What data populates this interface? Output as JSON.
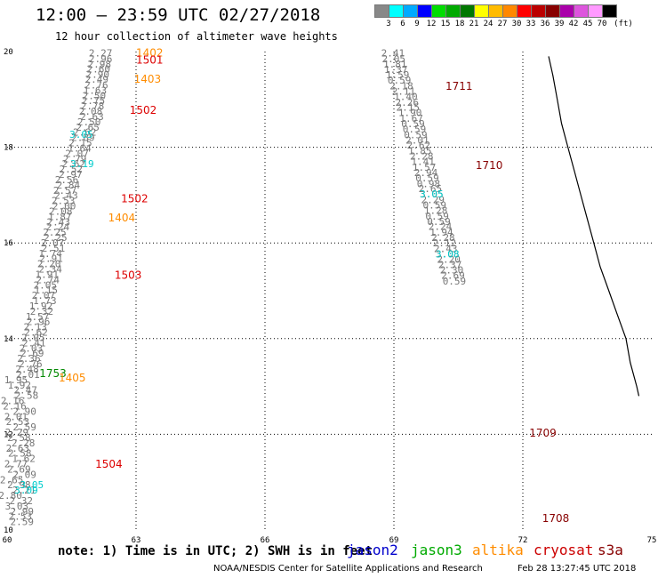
{
  "title": "12:00 – 23:59 UTC 02/27/2018",
  "subtitle": "12 hour collection of altimeter wave heights",
  "colorbar": {
    "colors": [
      "#888888",
      "#00ffff",
      "#00aaff",
      "#0000ff",
      "#00dd00",
      "#00aa00",
      "#007700",
      "#ffff00",
      "#ffbb00",
      "#ff8800",
      "#ff0000",
      "#bb0000",
      "#880000",
      "#aa00aa",
      "#dd55dd",
      "#ff99ff",
      "#000000"
    ],
    "labels": [
      "3",
      "6",
      "9",
      "12",
      "15",
      "18",
      "21",
      "24",
      "27",
      "30",
      "33",
      "36",
      "39",
      "42",
      "45",
      "70",
      "(ft)"
    ]
  },
  "map": {
    "lon_min": 60,
    "lon_max": 75,
    "lat_min": 10,
    "lat_max": 20,
    "lon_ticks": [
      60,
      63,
      66,
      69,
      72,
      75
    ],
    "lat_ticks": [
      10,
      12,
      14,
      16,
      18,
      20
    ],
    "grid": "dotted"
  },
  "coastline": [
    [
      72.6,
      19.9
    ],
    [
      72.7,
      19.5
    ],
    [
      72.8,
      19.0
    ],
    [
      72.9,
      18.5
    ],
    [
      73.05,
      18.0
    ],
    [
      73.2,
      17.5
    ],
    [
      73.35,
      17.0
    ],
    [
      73.5,
      16.5
    ],
    [
      73.65,
      16.0
    ],
    [
      73.8,
      15.5
    ],
    [
      74.0,
      15.0
    ],
    [
      74.2,
      14.5
    ],
    [
      74.4,
      14.0
    ],
    [
      74.5,
      13.5
    ],
    [
      74.65,
      13.0
    ],
    [
      74.7,
      12.8
    ]
  ],
  "coast_color": "#000000",
  "passes": [
    {
      "color": "#777777",
      "labels": [
        [
          62.45,
          19.9,
          "2.27"
        ],
        [
          62.45,
          19.78,
          "2.96"
        ],
        [
          62.42,
          19.67,
          "2.98"
        ],
        [
          62.4,
          19.56,
          "2.60"
        ],
        [
          62.38,
          19.45,
          "2.90"
        ],
        [
          62.36,
          19.35,
          "2.49"
        ],
        [
          62.35,
          19.23,
          "2.76"
        ],
        [
          62.32,
          19.12,
          "1.63"
        ],
        [
          62.3,
          19.01,
          "2.50"
        ],
        [
          62.28,
          18.9,
          "2.75"
        ],
        [
          62.26,
          18.79,
          "2.78"
        ],
        [
          62.22,
          18.68,
          "2.08"
        ],
        [
          62.25,
          18.57,
          "2.63"
        ],
        [
          62.18,
          18.46,
          "2.50"
        ],
        [
          62.15,
          18.35,
          "2.65"
        ],
        [
          62.08,
          18.24,
          "2.62"
        ],
        [
          62.04,
          18.13,
          "2.89"
        ],
        [
          61.98,
          18.02,
          "2.15"
        ],
        [
          61.96,
          17.91,
          "1.64"
        ],
        [
          61.9,
          17.8,
          "2.07"
        ],
        [
          61.85,
          17.69,
          "2.79"
        ],
        [
          61.82,
          17.58,
          "2.62"
        ],
        [
          61.76,
          17.47,
          "2.52"
        ],
        [
          61.75,
          17.36,
          "2.97"
        ],
        [
          61.66,
          17.25,
          "2.56"
        ],
        [
          61.7,
          17.14,
          "2.84"
        ],
        [
          61.62,
          17.03,
          "2.57"
        ],
        [
          61.65,
          16.92,
          "2.43"
        ],
        [
          61.58,
          16.81,
          "2.53"
        ],
        [
          61.6,
          16.7,
          "2.00"
        ],
        [
          61.52,
          16.59,
          "2.08"
        ],
        [
          61.5,
          16.48,
          "1.87"
        ],
        [
          61.47,
          16.37,
          "2.43"
        ],
        [
          61.45,
          16.26,
          "2.24"
        ],
        [
          61.38,
          16.15,
          "2.25"
        ],
        [
          61.4,
          16.04,
          "2.25"
        ],
        [
          61.33,
          15.93,
          "2.07"
        ],
        [
          61.35,
          15.82,
          "2.51"
        ],
        [
          61.28,
          15.71,
          "1.74"
        ],
        [
          61.3,
          15.6,
          "2.91"
        ],
        [
          61.25,
          15.49,
          "2.20"
        ],
        [
          61.28,
          15.38,
          "2.34"
        ],
        [
          61.2,
          15.27,
          "1.91"
        ],
        [
          61.22,
          15.16,
          "2.74"
        ],
        [
          61.16,
          15.05,
          "2.05"
        ],
        [
          61.18,
          14.94,
          "1.15"
        ],
        [
          61.12,
          14.83,
          "2.07"
        ],
        [
          61.15,
          14.72,
          "1.73"
        ],
        [
          61.06,
          14.61,
          "1.92"
        ],
        [
          61.08,
          14.5,
          "2.32"
        ],
        [
          60.98,
          14.39,
          "1.57"
        ],
        [
          61.0,
          14.28,
          "2.96"
        ],
        [
          60.93,
          14.17,
          "2.13"
        ],
        [
          60.95,
          14.06,
          "2.62"
        ],
        [
          60.88,
          13.95,
          "2.05"
        ],
        [
          60.9,
          13.84,
          "2.41"
        ],
        [
          60.83,
          13.73,
          "2.03"
        ],
        [
          60.86,
          13.62,
          "2.69"
        ],
        [
          60.78,
          13.51,
          "2.36"
        ],
        [
          60.82,
          13.4,
          "2.76"
        ],
        [
          60.74,
          13.29,
          "2.48"
        ],
        [
          60.76,
          13.18,
          "2.01"
        ],
        [
          60.48,
          13.07,
          "1.95"
        ],
        [
          60.56,
          12.96,
          "1.92"
        ],
        [
          60.7,
          12.85,
          "2.47"
        ],
        [
          60.73,
          12.74,
          "2.58"
        ],
        [
          60.4,
          12.63,
          "2.16"
        ],
        [
          60.45,
          12.52,
          "2.16"
        ],
        [
          60.68,
          12.41,
          "2.90"
        ],
        [
          60.48,
          12.3,
          "2.01"
        ],
        [
          60.52,
          12.19,
          "2.53"
        ],
        [
          60.68,
          12.08,
          "2.59"
        ],
        [
          60.5,
          11.97,
          "2.29"
        ],
        [
          60.55,
          11.86,
          "2.58"
        ],
        [
          60.65,
          11.75,
          "2.28"
        ],
        [
          60.52,
          11.64,
          "2.63"
        ],
        [
          60.57,
          11.53,
          "2.58"
        ],
        [
          60.66,
          11.42,
          "1.62"
        ],
        [
          60.48,
          11.31,
          "2.77"
        ],
        [
          60.55,
          11.2,
          "2.69"
        ],
        [
          60.68,
          11.09,
          "2.09"
        ],
        [
          60.38,
          10.98,
          "2.65"
        ],
        [
          60.55,
          10.87,
          "2.98"
        ],
        [
          60.67,
          10.76,
          "2.21"
        ],
        [
          60.35,
          10.65,
          "2.80"
        ],
        [
          60.6,
          10.54,
          "2.32"
        ],
        [
          60.5,
          10.43,
          "3.03"
        ],
        [
          60.62,
          10.32,
          "2.99"
        ],
        [
          60.58,
          10.21,
          "2.53"
        ],
        [
          60.62,
          10.1,
          "2.59"
        ]
      ]
    },
    {
      "color": "#777777",
      "labels": [
        [
          69.25,
          19.9,
          "2.41"
        ],
        [
          69.27,
          19.78,
          "2.05"
        ],
        [
          69.3,
          19.67,
          "1.81"
        ],
        [
          69.32,
          19.55,
          "1.37"
        ],
        [
          69.36,
          19.44,
          "1.59"
        ],
        [
          69.4,
          19.33,
          "0.59"
        ],
        [
          69.45,
          19.21,
          "2.18"
        ],
        [
          69.5,
          19.1,
          "2.11"
        ],
        [
          69.55,
          18.99,
          "1.40"
        ],
        [
          69.58,
          18.87,
          "2.26"
        ],
        [
          69.6,
          18.76,
          "2.15"
        ],
        [
          69.65,
          18.65,
          "1.90"
        ],
        [
          69.68,
          18.53,
          "1.67"
        ],
        [
          69.72,
          18.42,
          "0.59"
        ],
        [
          69.75,
          18.31,
          "0.59"
        ],
        [
          69.78,
          18.19,
          "0.59"
        ],
        [
          69.82,
          18.08,
          "2.01"
        ],
        [
          69.85,
          17.97,
          "2.62"
        ],
        [
          69.88,
          17.85,
          "1.85"
        ],
        [
          69.92,
          17.74,
          "2.28"
        ],
        [
          69.95,
          17.63,
          "1.41"
        ],
        [
          69.98,
          17.51,
          "1.57"
        ],
        [
          70.02,
          17.4,
          "2.94"
        ],
        [
          70.05,
          17.29,
          "0.59"
        ],
        [
          70.08,
          17.17,
          "0.98"
        ],
        [
          70.12,
          17.06,
          "2.65"
        ],
        [
          70.15,
          16.95,
          "3.05"
        ],
        [
          70.18,
          16.83,
          "2.29"
        ],
        [
          70.22,
          16.72,
          "0.59"
        ],
        [
          70.25,
          16.61,
          "1.28"
        ],
        [
          70.28,
          16.49,
          "0.59"
        ],
        [
          70.32,
          16.38,
          "0.59"
        ],
        [
          70.35,
          16.27,
          "2.24"
        ],
        [
          70.38,
          16.15,
          "1.94"
        ],
        [
          70.42,
          16.04,
          "2.28"
        ],
        [
          70.45,
          15.93,
          "2.12"
        ],
        [
          70.48,
          15.81,
          "2.43"
        ],
        [
          70.52,
          15.7,
          "3.08"
        ],
        [
          70.55,
          15.59,
          "2.20"
        ],
        [
          70.58,
          15.47,
          "2.37"
        ],
        [
          70.62,
          15.36,
          "2.30"
        ],
        [
          70.65,
          15.25,
          "2.69"
        ],
        [
          70.68,
          15.13,
          "0.59"
        ]
      ]
    },
    {
      "color": "#00cccc",
      "labels": [
        [
          62.0,
          18.2,
          "3.05"
        ],
        [
          62.02,
          17.58,
          "3.19"
        ],
        [
          70.15,
          16.95,
          "3.05"
        ],
        [
          70.52,
          15.7,
          "3.08"
        ],
        [
          60.85,
          10.87,
          "3.05"
        ],
        [
          60.72,
          10.76,
          "3.09"
        ]
      ]
    }
  ],
  "time_labels": [
    {
      "lon": 63.0,
      "lat": 19.9,
      "text": "1402",
      "color": "#ff8c00"
    },
    {
      "lon": 63.0,
      "lat": 19.75,
      "text": "1501",
      "color": "#dd0000"
    },
    {
      "lon": 62.95,
      "lat": 19.35,
      "text": "1403",
      "color": "#ff8c00"
    },
    {
      "lon": 62.85,
      "lat": 18.7,
      "text": "1502",
      "color": "#dd0000"
    },
    {
      "lon": 70.2,
      "lat": 19.2,
      "text": "1711",
      "color": "#880000"
    },
    {
      "lon": 62.65,
      "lat": 16.85,
      "text": "1502",
      "color": "#dd0000"
    },
    {
      "lon": 62.35,
      "lat": 16.45,
      "text": "1404",
      "color": "#ff8c00"
    },
    {
      "lon": 70.9,
      "lat": 17.55,
      "text": "1710",
      "color": "#880000"
    },
    {
      "lon": 62.5,
      "lat": 15.25,
      "text": "1503",
      "color": "#dd0000"
    },
    {
      "lon": 60.75,
      "lat": 13.2,
      "text": "1753",
      "color": "#008800"
    },
    {
      "lon": 61.2,
      "lat": 13.1,
      "text": "1405",
      "color": "#ff8c00"
    },
    {
      "lon": 72.15,
      "lat": 11.95,
      "text": "1709",
      "color": "#880000"
    },
    {
      "lon": 62.05,
      "lat": 11.3,
      "text": "1504",
      "color": "#dd0000"
    },
    {
      "lon": 72.45,
      "lat": 10.17,
      "text": "1708",
      "color": "#880000"
    }
  ],
  "note": "note: 1) Time is in UTC; 2) SWH is in feet",
  "satellites": [
    {
      "name": "jason2",
      "color": "#0000cc"
    },
    {
      "name": "jason3",
      "color": "#00aa00"
    },
    {
      "name": "altika",
      "color": "#ff8c00"
    },
    {
      "name": "cryosat",
      "color": "#cc0000"
    },
    {
      "name": "s3a",
      "color": "#880000"
    }
  ],
  "footer_credit": "NOAA/NESDIS Center for Satellite Applications and Research",
  "footer_stamp": "Feb 28 13:27:45 UTC 2018"
}
